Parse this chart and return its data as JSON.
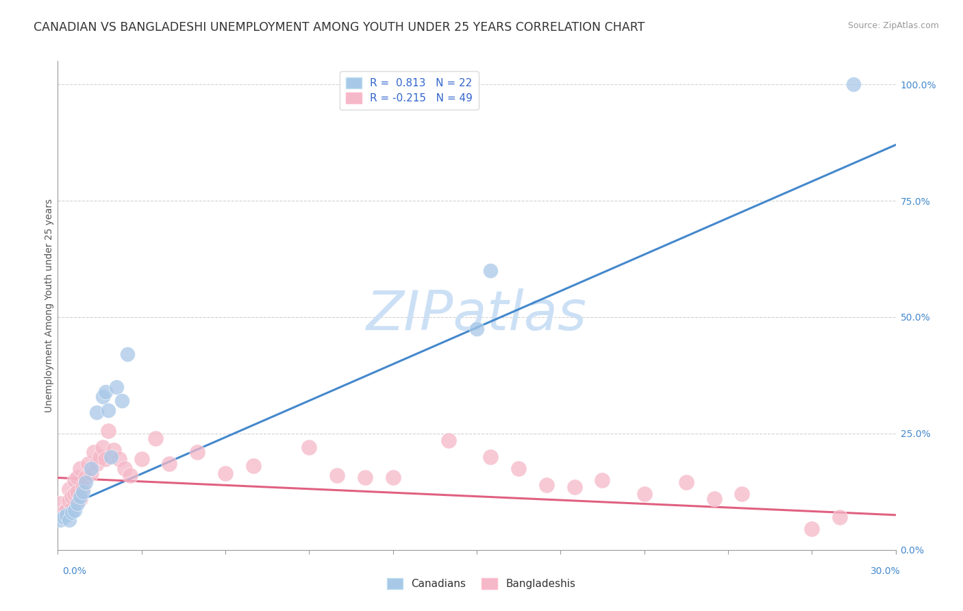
{
  "title": "CANADIAN VS BANGLADESHI UNEMPLOYMENT AMONG YOUTH UNDER 25 YEARS CORRELATION CHART",
  "source_text": "Source: ZipAtlas.com",
  "ylabel": "Unemployment Among Youth under 25 years",
  "ytick_values": [
    0.0,
    0.25,
    0.5,
    0.75,
    1.0
  ],
  "ytick_labels": [
    "0.0%",
    "25.0%",
    "50.0%",
    "75.0%",
    "100.0%"
  ],
  "xmin": 0.0,
  "xmax": 0.3,
  "ymin": 0.0,
  "ymax": 1.05,
  "canadian_color": "#a8c8e8",
  "bangladeshi_color": "#f5b8c8",
  "trend_canadian_color": "#4488cc",
  "trend_bangladeshi_color": "#e06080",
  "watermark_text": "ZIPatlas",
  "watermark_color": "#cce0f5",
  "grid_color": "#cccccc",
  "background_color": "#ffffff",
  "title_fontsize": 12.5,
  "axis_fontsize": 10,
  "legend_fontsize": 11,
  "right_tick_color": "#4488cc",
  "canadians_x": [
    0.001,
    0.002,
    0.003,
    0.004,
    0.005,
    0.006,
    0.007,
    0.008,
    0.009,
    0.01,
    0.012,
    0.014,
    0.016,
    0.017,
    0.018,
    0.019,
    0.021,
    0.023,
    0.025,
    0.15,
    0.155,
    0.285
  ],
  "canadians_y": [
    0.065,
    0.07,
    0.075,
    0.065,
    0.08,
    0.085,
    0.1,
    0.115,
    0.125,
    0.145,
    0.175,
    0.295,
    0.33,
    0.34,
    0.3,
    0.2,
    0.35,
    0.32,
    0.42,
    0.475,
    0.6,
    1.0
  ],
  "bangladeshis_x": [
    0.001,
    0.002,
    0.003,
    0.004,
    0.004,
    0.005,
    0.005,
    0.006,
    0.006,
    0.007,
    0.007,
    0.008,
    0.008,
    0.009,
    0.01,
    0.011,
    0.012,
    0.013,
    0.014,
    0.015,
    0.016,
    0.017,
    0.018,
    0.02,
    0.022,
    0.024,
    0.026,
    0.03,
    0.035,
    0.04,
    0.05,
    0.06,
    0.07,
    0.09,
    0.1,
    0.11,
    0.12,
    0.14,
    0.155,
    0.165,
    0.175,
    0.185,
    0.195,
    0.21,
    0.225,
    0.235,
    0.245,
    0.27,
    0.28
  ],
  "bangladeshis_y": [
    0.1,
    0.08,
    0.085,
    0.105,
    0.13,
    0.09,
    0.115,
    0.12,
    0.15,
    0.125,
    0.155,
    0.11,
    0.175,
    0.135,
    0.155,
    0.185,
    0.165,
    0.21,
    0.185,
    0.2,
    0.22,
    0.195,
    0.255,
    0.215,
    0.195,
    0.175,
    0.16,
    0.195,
    0.24,
    0.185,
    0.21,
    0.165,
    0.18,
    0.22,
    0.16,
    0.155,
    0.155,
    0.235,
    0.2,
    0.175,
    0.14,
    0.135,
    0.15,
    0.12,
    0.145,
    0.11,
    0.12,
    0.045,
    0.07
  ],
  "can_trend_x0": 0.0,
  "can_trend_x1": 0.3,
  "can_trend_y0": 0.085,
  "can_trend_y1": 0.87,
  "ban_trend_x0": 0.0,
  "ban_trend_x1": 0.3,
  "ban_trend_y0": 0.155,
  "ban_trend_y1": 0.075
}
